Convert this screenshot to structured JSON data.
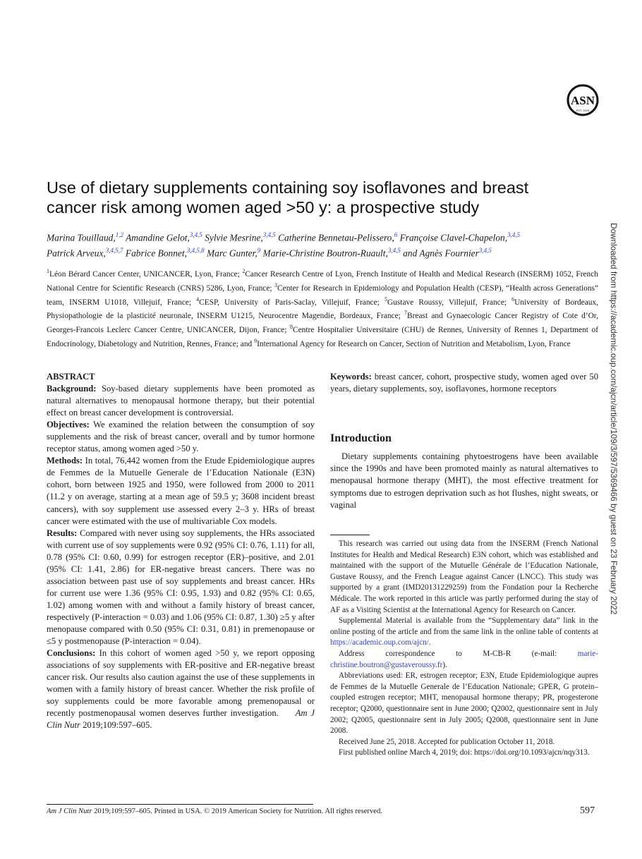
{
  "logo": {
    "text": "ASN",
    "subtext": "EST. 1928"
  },
  "title": "Use of dietary supplements containing soy isoflavones and breast cancer risk among women aged >50 y: a prospective study",
  "authors": [
    {
      "name": "Marina Touillaud,",
      "sup": "1,2"
    },
    {
      "name": "Amandine Gelot,",
      "sup": "3,4,5"
    },
    {
      "name": "Sylvie Mesrine,",
      "sup": "3,4,5"
    },
    {
      "name": "Catherine Bennetau-Pelissero,",
      "sup": "6"
    },
    {
      "name": "Françoise Clavel-Chapelon,",
      "sup": "3,4,5"
    },
    {
      "name": "Patrick Arveux,",
      "sup": "3,4,5,7"
    },
    {
      "name": "Fabrice Bonnet,",
      "sup": "3,4,5,8"
    },
    {
      "name": "Marc Gunter,",
      "sup": "9"
    },
    {
      "name": "Marie-Christine Boutron-Ruault,",
      "sup": "3,4,5"
    },
    {
      "name": "and Agnès Fournier",
      "sup": "3,4,5"
    }
  ],
  "affiliations": [
    {
      "n": "1",
      "text": "Léon Bérard Cancer Center, UNICANCER, Lyon, France; "
    },
    {
      "n": "2",
      "text": "Cancer Research Centre of Lyon, French Institute of Health and Medical Research (INSERM) 1052, French National Centre for Scientific Research (CNRS) 5286, Lyon, France; "
    },
    {
      "n": "3",
      "text": "Center for Research in Epidemiology and Population Health (CESP), “Health across Generations” team, INSERM U1018, Villejuif, France; "
    },
    {
      "n": "4",
      "text": "CESP, University of Paris-Saclay, Villejuif, France; "
    },
    {
      "n": "5",
      "text": "Gustave Roussy, Villejuif, France; "
    },
    {
      "n": "6",
      "text": "University of Bordeaux, Physiopathologie de la plasticité neuronale, INSERM U1215, Neurocentre Magendie, Bordeaux, France; "
    },
    {
      "n": "7",
      "text": "Breast and Gynaecologic Cancer Registry of Cote d’Or, Georges-Francois Leclerc Cancer Centre, UNICANCER, Dijon, France; "
    },
    {
      "n": "8",
      "text": "Centre Hospitalier Universitaire (CHU) de Rennes, University of Rennes 1, Department of Endocrinology, Diabetology and Nutrition, Rennes, France; and "
    },
    {
      "n": "9",
      "text": "International Agency for Research on Cancer, Section of Nutrition and Metabolism, Lyon, France"
    }
  ],
  "abstract": {
    "heading": "ABSTRACT",
    "sections": [
      {
        "label": "Background:",
        "text": " Soy-based dietary supplements have been promoted as natural alternatives to menopausal hormone therapy, but their potential effect on breast cancer development is controversial."
      },
      {
        "label": "Objectives:",
        "text": " We examined the relation between the consumption of soy supplements and the risk of breast cancer, overall and by tumor hormone receptor status, among women aged >50 y."
      },
      {
        "label": "Methods:",
        "text": " In total, 76,442 women from the Etude Epidemiologique aupres de Femmes de la Mutuelle Generale de l’Education Nationale (E3N) cohort, born between 1925 and 1950, were followed from 2000 to 2011 (11.2 y on average, starting at a mean age of 59.5 y; 3608 incident breast cancers), with soy supplement use assessed every 2–3 y. HRs of breast cancer were estimated with the use of multivariable Cox models."
      },
      {
        "label": "Results:",
        "text": " Compared with never using soy supplements, the HRs associated with current use of soy supplements were 0.92 (95% CI: 0.76, 1.11) for all, 0.78 (95% CI: 0.60, 0.99) for estrogen receptor (ER)–positive, and 2.01 (95% CI: 1.41, 2.86) for ER-negative breast cancers. There was no association between past use of soy supplements and breast cancer. HRs for current use were 1.36 (95% CI: 0.95, 1.93) and 0.82 (95% CI: 0.65, 1.02) among women with and without a family history of breast cancer, respectively (P-interaction = 0.03) and 1.06 (95% CI: 0.87, 1.30) ≥5 y after menopause compared with 0.50 (95% CI: 0.31, 0.81) in premenopause or ≤5 y postmenopause (P-interaction = 0.04)."
      },
      {
        "label": "Conclusions:",
        "text": " In this cohort of women aged >50 y, we report opposing associations of soy supplements with ER-positive and ER-negative breast cancer risk. Our results also caution against the use of these supplements in women with a family history of breast cancer. Whether the risk profile of soy supplements could be more favorable among premenopausal or recently postmenopausal women deserves further investigation."
      }
    ],
    "citation_journal": "Am J Clin Nutr",
    "citation_rest": " 2019;109:597–605."
  },
  "keywords": {
    "label": "Keywords:",
    "text": " breast cancer, cohort, prospective study, women aged over 50 years, dietary supplements, soy, isoflavones, hormone receptors"
  },
  "introduction": {
    "heading": "Introduction",
    "text": "Dietary supplements containing phytoestrogens have been available since the 1990s and have been promoted mainly as natural alternatives to menopausal hormone therapy (MHT), the most effective treatment for symptoms due to estrogen deprivation such as hot flushes, night sweats, or vaginal"
  },
  "footnotes": {
    "funding": "This research was carried out using data from the INSERM (French National Institutes for Health and Medical Research) E3N cohort, which was established and maintained with the support of the Mutuelle Générale de l’Education Nationale, Gustave Roussy, and the French League against Cancer (LNCC). This study was supported by a grant (IMD20131229259) from the Fondation pour la Recherche Médicale. The work reported in this article was partly performed during the stay of AF as a Visiting Scientist at the International Agency for Research on Cancer.",
    "supplemental_pre": "Supplemental Material is available from the “Supplementary data” link in the online posting of the article and from the same link in the online table of contents at ",
    "supplemental_link": "https://academic.oup.com/ajcn/",
    "supplemental_post": ".",
    "address_pre": "Address correspondence to M-CB-R (e-mail: ",
    "address_link": "marie-christine.boutron@gustaveroussy.fr",
    "address_post": ").",
    "abbreviations": "Abbreviations used: ER, estrogen receptor; E3N, Etude Epidemiologique aupres de Femmes de la Mutuelle Generale de l’Education Nationale; GPER, G protein–coupled estrogen receptor; MHT, menopausal hormone therapy; PR, progesterone receptor; Q2000, questionnaire sent in June 2000; Q2002, questionnaire sent in July 2002; Q2005, questionnaire sent in July 2005; Q2008, questionnaire sent in June 2008.",
    "received": "Received June 25, 2018. Accepted for publication October 11, 2018.",
    "published": "First published online March 4, 2019; doi: https://doi.org/10.1093/ajcn/nqy313."
  },
  "footer": {
    "journal": "Am J Clin Nutr",
    "text": " 2019;109:597–605. Printed in USA. © 2019 American Society for Nutrition. All rights reserved.",
    "page": "597"
  },
  "side_watermark": "Downloaded from https://academic.oup.com/ajcn/article/109/3/597/5369466 by guest on 23 February 2022"
}
